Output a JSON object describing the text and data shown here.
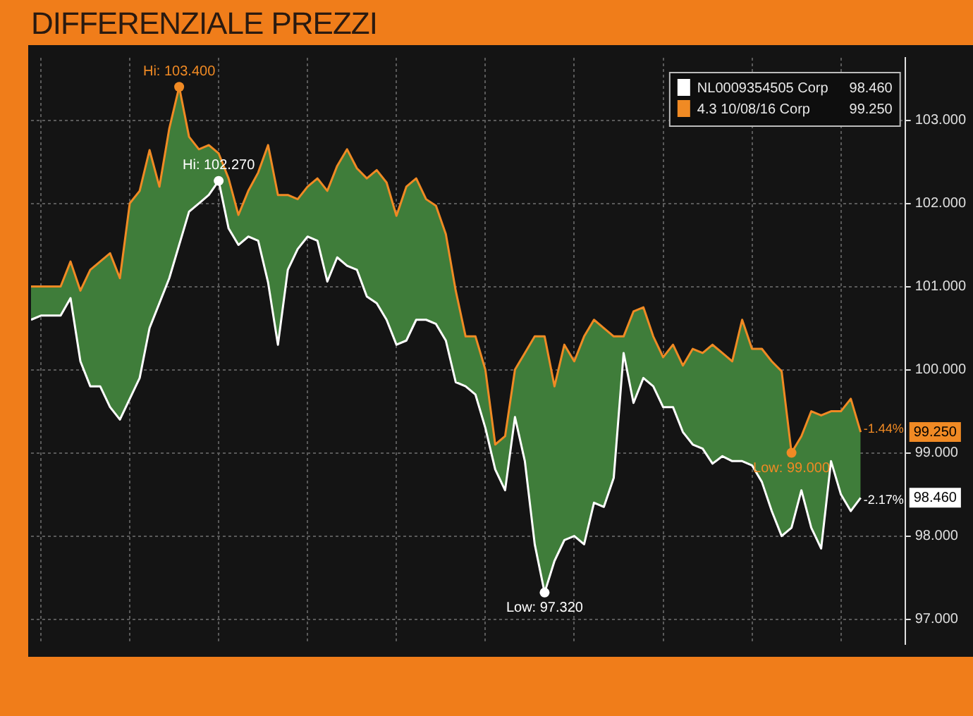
{
  "chart_data": {
    "type": "line",
    "title": "DIFFERENZIALE PREZZI",
    "categories": [
      null,
      null,
      null,
      null,
      null,
      null,
      null,
      null,
      null,
      null,
      null,
      null,
      null,
      null,
      null,
      null,
      null,
      null,
      null,
      null,
      null,
      null,
      null,
      null,
      null,
      null,
      null,
      null,
      null,
      null,
      null,
      null,
      null,
      null,
      null,
      null,
      null,
      null,
      null,
      null,
      null,
      null,
      null,
      null,
      null,
      null,
      null,
      null,
      null,
      null,
      null,
      null,
      null,
      null,
      null,
      null,
      null,
      null,
      null,
      null,
      null,
      null,
      null,
      null,
      null,
      null,
      null,
      null,
      null,
      null,
      null,
      null,
      null,
      null,
      null,
      null,
      null,
      null,
      null,
      null,
      null,
      null,
      null,
      null,
      null
    ],
    "series": [
      {
        "name": "NL0009354505 Corp",
        "color": "#ffffff",
        "values": [
          100.6,
          100.65,
          100.65,
          100.65,
          100.86,
          100.1,
          99.8,
          99.8,
          99.55,
          99.4,
          99.65,
          99.9,
          100.5,
          100.8,
          101.1,
          101.5,
          101.9,
          102.0,
          102.1,
          102.27,
          101.7,
          101.5,
          101.6,
          101.55,
          101.05,
          100.3,
          101.2,
          101.45,
          101.6,
          101.55,
          101.06,
          101.35,
          101.25,
          101.2,
          100.88,
          100.8,
          100.6,
          100.3,
          100.35,
          100.6,
          100.6,
          100.55,
          100.35,
          99.85,
          99.8,
          99.7,
          99.3,
          98.8,
          98.55,
          99.43,
          98.9,
          97.9,
          97.32,
          97.7,
          97.95,
          98.0,
          97.9,
          98.4,
          98.35,
          98.7,
          100.2,
          99.6,
          99.9,
          99.8,
          99.55,
          99.55,
          99.25,
          99.1,
          99.05,
          98.87,
          98.96,
          98.9,
          98.9,
          98.85,
          98.65,
          98.3,
          98.0,
          98.1,
          98.55,
          98.1,
          97.85,
          98.9,
          98.5,
          98.3,
          98.46
        ]
      },
      {
        "name": "4.3 10/08/16 Corp",
        "color": "#f08a24",
        "values": [
          101.0,
          101.0,
          101.0,
          101.0,
          101.3,
          100.95,
          101.2,
          101.3,
          101.4,
          101.1,
          102.0,
          102.15,
          102.64,
          102.2,
          102.9,
          103.4,
          102.8,
          102.65,
          102.7,
          102.6,
          102.3,
          101.86,
          102.15,
          102.37,
          102.7,
          102.1,
          102.1,
          102.05,
          102.2,
          102.3,
          102.15,
          102.45,
          102.65,
          102.42,
          102.3,
          102.4,
          102.25,
          101.85,
          102.2,
          102.3,
          102.05,
          101.97,
          101.63,
          100.95,
          100.4,
          100.4,
          100.0,
          99.1,
          99.2,
          100.0,
          100.2,
          100.4,
          100.4,
          99.8,
          100.3,
          100.1,
          100.4,
          100.6,
          100.5,
          100.4,
          100.4,
          100.7,
          100.75,
          100.4,
          100.15,
          100.3,
          100.05,
          100.25,
          100.2,
          100.3,
          100.2,
          100.1,
          100.6,
          100.25,
          100.25,
          100.1,
          99.98,
          99.0,
          99.2,
          99.5,
          99.45,
          99.5,
          99.5,
          99.65,
          99.25
        ],
        "lower": [
          100.6,
          100.65,
          100.65,
          100.65,
          100.86,
          100.1,
          99.8,
          99.8,
          99.55,
          99.4,
          99.65,
          99.9,
          100.5,
          100.8,
          101.1,
          101.5,
          101.9,
          102.0,
          102.1,
          102.27,
          101.7,
          101.5,
          101.6,
          101.55,
          101.05,
          100.3,
          101.2,
          101.45,
          101.6,
          101.55,
          101.06,
          101.35,
          101.25,
          101.2,
          100.88,
          100.8,
          100.6,
          100.3,
          100.35,
          100.6,
          100.6,
          100.55,
          100.35,
          99.85,
          99.8,
          99.7,
          99.3,
          98.8,
          98.55,
          99.43,
          98.9,
          97.9,
          97.32,
          97.7,
          97.95,
          98.0,
          97.9,
          98.4,
          98.35,
          98.7,
          100.2,
          99.6,
          99.9,
          99.8,
          99.55,
          99.55,
          99.25,
          99.1,
          99.05,
          98.87,
          98.96,
          98.9,
          98.9,
          98.85,
          98.65,
          98.3,
          98.0,
          98.1,
          98.55,
          98.1,
          97.85,
          98.9,
          98.5,
          98.3,
          98.46
        ],
        "upper": [
          101.0,
          101.0,
          101.0,
          101.0,
          101.3,
          100.95,
          101.2,
          101.3,
          101.4,
          101.1,
          102.0,
          102.15,
          102.64,
          102.2,
          102.9,
          103.4,
          102.8,
          102.65,
          102.7,
          102.6,
          102.3,
          101.86,
          102.15,
          102.37,
          102.7,
          102.1,
          102.1,
          102.05,
          102.2,
          102.3,
          102.15,
          102.45,
          102.65,
          102.42,
          102.3,
          102.4,
          102.25,
          101.85,
          102.2,
          102.3,
          102.05,
          101.97,
          101.63,
          100.95,
          100.4,
          100.4,
          100.0,
          99.1,
          99.2,
          100.0,
          100.2,
          100.4,
          100.4,
          99.8,
          100.3,
          100.1,
          100.4,
          100.6,
          100.5,
          100.4,
          100.4,
          100.7,
          100.75,
          100.4,
          100.15,
          100.3,
          100.05,
          100.25,
          100.2,
          100.3,
          100.2,
          100.1,
          100.6,
          100.25,
          100.25,
          100.1,
          99.98,
          99.0,
          99.2,
          99.5,
          99.45,
          99.5,
          99.5,
          99.65,
          99.25
        ]
      }
    ],
    "ylim": [
      96.7,
      103.75
    ],
    "yticks": [
      {
        "value": 97,
        "label": "97.000"
      },
      {
        "value": 98,
        "label": "98.000"
      },
      {
        "value": 99,
        "label": "99.000"
      },
      {
        "value": 100,
        "label": "100.000"
      },
      {
        "value": 101,
        "label": "101.000"
      },
      {
        "value": 102,
        "label": "102.000"
      },
      {
        "value": 103,
        "label": "103.000"
      }
    ],
    "tick_labels": "y",
    "grid": true,
    "legend": "top right",
    "annotations": [
      {
        "text": "Hi: 103.400",
        "y": 103.4
      },
      {
        "text": "Hi: 102.270",
        "y": 102.27
      },
      {
        "text": "Low: 97.320",
        "y": 97.32
      },
      {
        "text": "Low: 99.000",
        "y": 99.0
      },
      "99.250",
      "-1.44%",
      "98.460",
      "-2.17%"
    ]
  }
}
